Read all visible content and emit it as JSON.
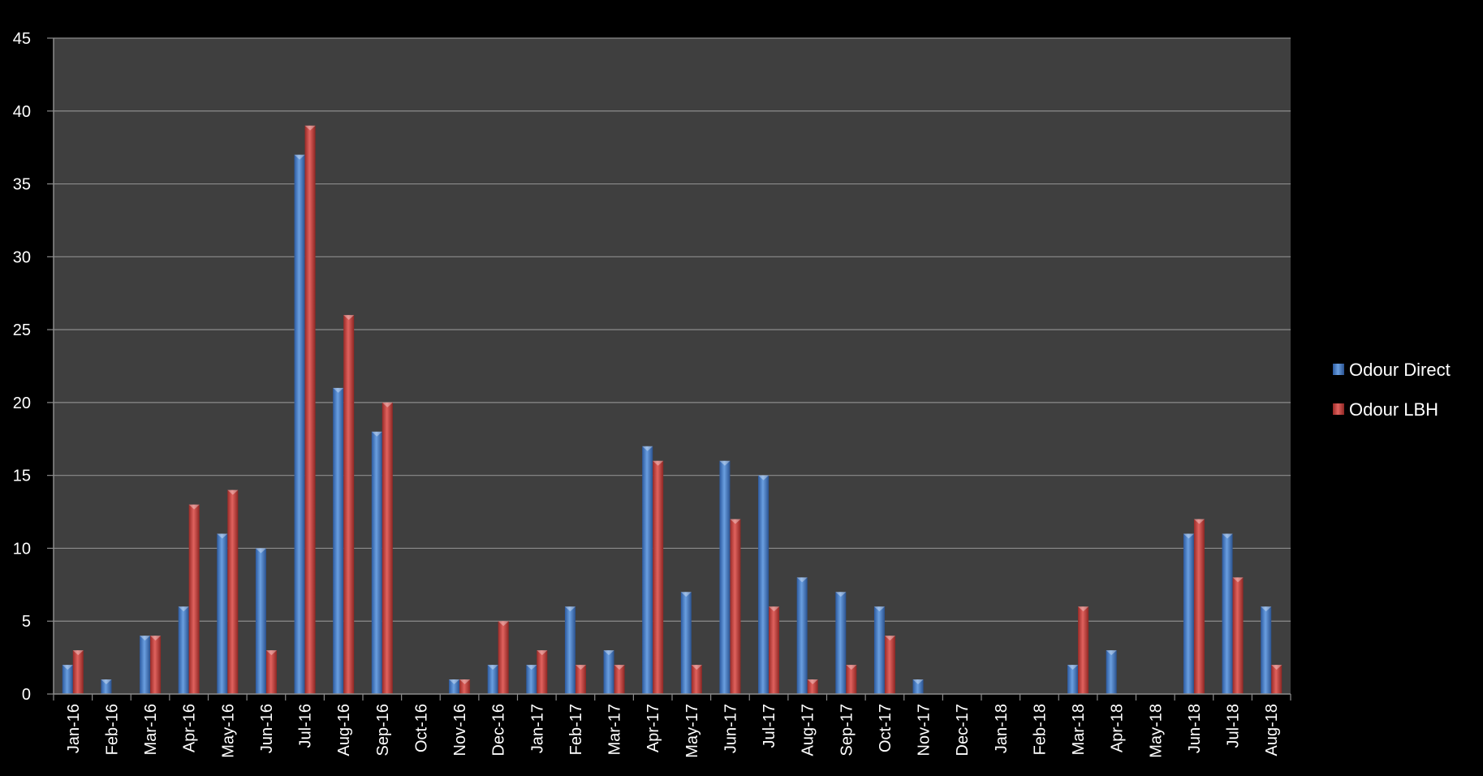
{
  "chart_data": {
    "type": "bar",
    "title": "",
    "xlabel": "",
    "ylabel": "",
    "ylim": [
      0,
      45
    ],
    "yticks": [
      0,
      5,
      10,
      15,
      20,
      25,
      30,
      35,
      40,
      45
    ],
    "grid": true,
    "legend_position": "right",
    "background": "#3f3f3f",
    "page_background": "#000000",
    "categories": [
      "Jan-16",
      "Feb-16",
      "Mar-16",
      "Apr-16",
      "May-16",
      "Jun-16",
      "Jul-16",
      "Aug-16",
      "Sep-16",
      "Oct-16",
      "Nov-16",
      "Dec-16",
      "Jan-17",
      "Feb-17",
      "Mar-17",
      "Apr-17",
      "May-17",
      "Jun-17",
      "Jul-17",
      "Aug-17",
      "Sep-17",
      "Oct-17",
      "Nov-17",
      "Dec-17",
      "Jan-18",
      "Feb-18",
      "Mar-18",
      "Apr-18",
      "May-18",
      "Jun-18",
      "Jul-18",
      "Aug-18"
    ],
    "series": [
      {
        "name": "Odour Direct",
        "color": "#4a7ebb",
        "values": [
          2,
          1,
          4,
          6,
          11,
          10,
          37,
          21,
          18,
          0,
          1,
          2,
          2,
          6,
          3,
          17,
          7,
          16,
          15,
          8,
          7,
          6,
          1,
          0,
          0,
          0,
          2,
          3,
          0,
          11,
          11,
          6
        ]
      },
      {
        "name": "Odour LBH",
        "color": "#be4b48",
        "values": [
          3,
          0,
          4,
          13,
          14,
          3,
          39,
          26,
          20,
          0,
          1,
          5,
          3,
          2,
          2,
          16,
          2,
          12,
          6,
          1,
          2,
          4,
          0,
          0,
          0,
          0,
          6,
          0,
          0,
          12,
          8,
          2
        ]
      }
    ]
  }
}
